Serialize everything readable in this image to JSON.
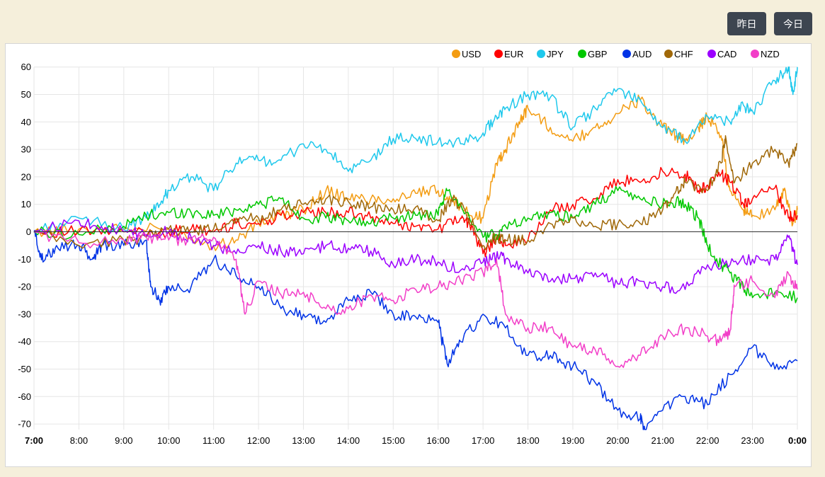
{
  "controls": {
    "yesterday_label": "昨日",
    "today_label": "今日"
  },
  "chart_data": {
    "type": "line",
    "x_ticks": [
      "7:00",
      "8:00",
      "9:00",
      "10:00",
      "11:00",
      "12:00",
      "13:00",
      "14:00",
      "15:00",
      "16:00",
      "17:00",
      "18:00",
      "19:00",
      "20:00",
      "21:00",
      "22:00",
      "23:00",
      "0:00"
    ],
    "bold_x_ticks": [
      "7:00",
      "0:00"
    ],
    "y_ticks": [
      60,
      50,
      40,
      30,
      20,
      10,
      0,
      -10,
      -20,
      -30,
      -40,
      -50,
      -60,
      -70
    ],
    "ylim": [
      -72,
      61
    ],
    "xlim": [
      7,
      24
    ],
    "grid": true,
    "zero_line": true,
    "legend_position": "top-right",
    "series": [
      {
        "name": "USD",
        "color": "#f39c12",
        "points": [
          [
            7,
            0
          ],
          [
            8,
            1
          ],
          [
            9,
            1
          ],
          [
            10,
            1
          ],
          [
            11,
            -5
          ],
          [
            11.5,
            -3
          ],
          [
            12,
            3
          ],
          [
            12.5,
            6
          ],
          [
            13,
            8
          ],
          [
            13.5,
            15
          ],
          [
            14,
            12
          ],
          [
            14.5,
            12
          ],
          [
            15,
            12
          ],
          [
            15.5,
            14
          ],
          [
            16,
            15
          ],
          [
            16.3,
            12
          ],
          [
            16.7,
            6
          ],
          [
            17,
            5
          ],
          [
            17.3,
            25
          ],
          [
            17.5,
            30
          ],
          [
            17.8,
            40
          ],
          [
            18,
            45
          ],
          [
            18.5,
            38
          ],
          [
            19,
            33
          ],
          [
            19.5,
            38
          ],
          [
            20,
            43
          ],
          [
            20.5,
            48
          ],
          [
            21,
            38
          ],
          [
            21.3,
            35
          ],
          [
            21.5,
            33
          ],
          [
            21.8,
            38
          ],
          [
            22,
            42
          ],
          [
            22.3,
            35
          ],
          [
            22.5,
            15
          ],
          [
            22.8,
            8
          ],
          [
            23,
            6
          ],
          [
            23.5,
            8
          ],
          [
            23.7,
            15
          ],
          [
            23.9,
            3
          ],
          [
            24,
            8
          ]
        ]
      },
      {
        "name": "EUR",
        "color": "#ff0000",
        "points": [
          [
            7,
            0
          ],
          [
            8,
            0
          ],
          [
            9,
            0
          ],
          [
            10,
            0
          ],
          [
            10.5,
            1
          ],
          [
            11,
            0
          ],
          [
            11.5,
            3
          ],
          [
            12,
            3
          ],
          [
            12.5,
            6
          ],
          [
            13,
            7
          ],
          [
            13.5,
            7
          ],
          [
            14,
            7
          ],
          [
            14.5,
            5
          ],
          [
            15,
            3
          ],
          [
            15.5,
            2
          ],
          [
            16,
            1
          ],
          [
            16.5,
            5
          ],
          [
            16.7,
            3
          ],
          [
            17,
            -8
          ],
          [
            17.3,
            -2
          ],
          [
            17.5,
            -5
          ],
          [
            18,
            -3
          ],
          [
            18.5,
            8
          ],
          [
            19,
            10
          ],
          [
            19.5,
            12
          ],
          [
            20,
            19
          ],
          [
            20.5,
            18
          ],
          [
            21,
            22
          ],
          [
            21.5,
            21
          ],
          [
            21.8,
            15
          ],
          [
            22,
            17
          ],
          [
            22.3,
            21
          ],
          [
            22.5,
            18
          ],
          [
            22.8,
            10
          ],
          [
            23,
            12
          ],
          [
            23.5,
            16
          ],
          [
            23.8,
            5
          ],
          [
            24,
            6
          ]
        ]
      },
      {
        "name": "JPY",
        "color": "#1ec8ec",
        "points": [
          [
            7,
            0
          ],
          [
            8,
            5
          ],
          [
            9,
            1
          ],
          [
            9.5,
            5
          ],
          [
            9.8,
            10
          ],
          [
            10,
            15
          ],
          [
            10.5,
            20
          ],
          [
            11,
            15
          ],
          [
            11.5,
            25
          ],
          [
            12,
            26
          ],
          [
            12.5,
            26
          ],
          [
            13,
            32
          ],
          [
            13.5,
            30
          ],
          [
            14,
            22
          ],
          [
            14.5,
            26
          ],
          [
            15,
            34
          ],
          [
            15.5,
            34
          ],
          [
            16,
            33
          ],
          [
            16.5,
            32
          ],
          [
            17,
            36
          ],
          [
            17.3,
            42
          ],
          [
            17.5,
            45
          ],
          [
            18,
            50
          ],
          [
            18.5,
            49
          ],
          [
            19,
            38
          ],
          [
            19.5,
            45
          ],
          [
            20,
            52
          ],
          [
            20.5,
            48
          ],
          [
            21,
            38
          ],
          [
            21.5,
            33
          ],
          [
            22,
            42
          ],
          [
            22.5,
            40
          ],
          [
            22.8,
            46
          ],
          [
            23,
            44
          ],
          [
            23.5,
            55
          ],
          [
            23.8,
            60
          ],
          [
            23.9,
            50
          ],
          [
            24,
            60
          ]
        ]
      },
      {
        "name": "GBP",
        "color": "#00c800",
        "points": [
          [
            7,
            0
          ],
          [
            8,
            -1
          ],
          [
            9,
            2
          ],
          [
            9.5,
            6
          ],
          [
            10,
            7
          ],
          [
            10.5,
            7
          ],
          [
            11,
            6
          ],
          [
            11.5,
            8
          ],
          [
            12,
            10
          ],
          [
            12.5,
            12
          ],
          [
            13,
            5
          ],
          [
            13.5,
            5
          ],
          [
            14,
            4
          ],
          [
            14.5,
            3
          ],
          [
            15,
            5
          ],
          [
            15.5,
            6
          ],
          [
            16,
            6
          ],
          [
            16.2,
            15
          ],
          [
            16.5,
            10
          ],
          [
            17,
            -2
          ],
          [
            17.3,
            -1
          ],
          [
            17.5,
            2
          ],
          [
            18,
            5
          ],
          [
            18.5,
            7
          ],
          [
            19,
            5
          ],
          [
            19.5,
            10
          ],
          [
            20,
            15
          ],
          [
            20.5,
            12
          ],
          [
            21,
            10
          ],
          [
            21.3,
            11
          ],
          [
            21.5,
            10
          ],
          [
            21.8,
            5
          ],
          [
            22,
            -5
          ],
          [
            22.3,
            -12
          ],
          [
            22.5,
            -15
          ],
          [
            22.8,
            -20
          ],
          [
            23,
            -24
          ],
          [
            23.5,
            -22
          ],
          [
            24,
            -24
          ]
        ]
      },
      {
        "name": "AUD",
        "color": "#0033e6",
        "points": [
          [
            7,
            0
          ],
          [
            7.2,
            -11
          ],
          [
            7.5,
            -5
          ],
          [
            8,
            -5
          ],
          [
            8.3,
            -10
          ],
          [
            8.5,
            -5
          ],
          [
            9,
            -5
          ],
          [
            9.5,
            -3
          ],
          [
            9.6,
            -20
          ],
          [
            9.8,
            -25
          ],
          [
            10,
            -20
          ],
          [
            10.5,
            -20
          ],
          [
            11,
            -10
          ],
          [
            11.5,
            -16
          ],
          [
            12,
            -20
          ],
          [
            12.5,
            -28
          ],
          [
            13,
            -30
          ],
          [
            13.5,
            -33
          ],
          [
            14,
            -25
          ],
          [
            14.5,
            -22
          ],
          [
            15,
            -30
          ],
          [
            15.5,
            -31
          ],
          [
            16,
            -33
          ],
          [
            16.2,
            -48
          ],
          [
            16.5,
            -40
          ],
          [
            17,
            -30
          ],
          [
            17.5,
            -35
          ],
          [
            18,
            -45
          ],
          [
            18.5,
            -45
          ],
          [
            19,
            -49
          ],
          [
            19.5,
            -55
          ],
          [
            20,
            -65
          ],
          [
            20.5,
            -68
          ],
          [
            20.6,
            -72
          ],
          [
            21,
            -65
          ],
          [
            21.5,
            -60
          ],
          [
            22,
            -63
          ],
          [
            22.5,
            -52
          ],
          [
            23,
            -42
          ],
          [
            23.5,
            -50
          ],
          [
            24,
            -47
          ]
        ]
      },
      {
        "name": "CHF",
        "color": "#a06808",
        "points": [
          [
            7,
            0
          ],
          [
            8,
            -5
          ],
          [
            9,
            -3
          ],
          [
            9.5,
            -2
          ],
          [
            10,
            1
          ],
          [
            10.5,
            0
          ],
          [
            11,
            1
          ],
          [
            11.5,
            5
          ],
          [
            12,
            5
          ],
          [
            12.5,
            8
          ],
          [
            13,
            10
          ],
          [
            13.5,
            12
          ],
          [
            14,
            11
          ],
          [
            14.5,
            9
          ],
          [
            15,
            8
          ],
          [
            15.5,
            9
          ],
          [
            16,
            4
          ],
          [
            16.3,
            12
          ],
          [
            16.6,
            8
          ],
          [
            17,
            -5
          ],
          [
            17.3,
            -2
          ],
          [
            17.5,
            -3
          ],
          [
            18,
            -3
          ],
          [
            18.5,
            3
          ],
          [
            19,
            5
          ],
          [
            19.5,
            2
          ],
          [
            20,
            3
          ],
          [
            20.5,
            3
          ],
          [
            21,
            8
          ],
          [
            21.3,
            15
          ],
          [
            21.5,
            18
          ],
          [
            22,
            15
          ],
          [
            22.3,
            25
          ],
          [
            22.4,
            35
          ],
          [
            22.6,
            18
          ],
          [
            23,
            25
          ],
          [
            23.5,
            30
          ],
          [
            23.8,
            25
          ],
          [
            24,
            32
          ]
        ]
      },
      {
        "name": "CAD",
        "color": "#9b00ff",
        "points": [
          [
            7,
            0
          ],
          [
            8,
            4
          ],
          [
            8.5,
            2
          ],
          [
            9,
            0
          ],
          [
            9.5,
            -1
          ],
          [
            10,
            0
          ],
          [
            10.5,
            -2
          ],
          [
            11,
            -5
          ],
          [
            11.5,
            -8
          ],
          [
            12,
            -5
          ],
          [
            12.5,
            -7
          ],
          [
            13,
            -8
          ],
          [
            13.5,
            -5
          ],
          [
            14,
            -6
          ],
          [
            14.5,
            -7
          ],
          [
            15,
            -12
          ],
          [
            15.5,
            -10
          ],
          [
            16,
            -11
          ],
          [
            16.5,
            -14
          ],
          [
            17,
            -11
          ],
          [
            17.3,
            -9
          ],
          [
            17.5,
            -10
          ],
          [
            18,
            -15
          ],
          [
            18.5,
            -18
          ],
          [
            19,
            -17
          ],
          [
            19.5,
            -15
          ],
          [
            20,
            -19
          ],
          [
            20.5,
            -18
          ],
          [
            21,
            -20
          ],
          [
            21.5,
            -21
          ],
          [
            22,
            -12
          ],
          [
            22.5,
            -12
          ],
          [
            23,
            -10
          ],
          [
            23.5,
            -10
          ],
          [
            23.8,
            -2
          ],
          [
            24,
            -12
          ]
        ]
      },
      {
        "name": "NZD",
        "color": "#f23ec8",
        "points": [
          [
            7,
            0
          ],
          [
            8,
            -4
          ],
          [
            9,
            -3
          ],
          [
            9.5,
            -2
          ],
          [
            10,
            -3
          ],
          [
            10.5,
            -3
          ],
          [
            11,
            -2
          ],
          [
            11.5,
            -10
          ],
          [
            11.7,
            -30
          ],
          [
            12,
            -18
          ],
          [
            12.5,
            -23
          ],
          [
            13,
            -22
          ],
          [
            13.5,
            -28
          ],
          [
            14,
            -28
          ],
          [
            14.5,
            -23
          ],
          [
            15,
            -25
          ],
          [
            15.5,
            -21
          ],
          [
            16,
            -20
          ],
          [
            16.5,
            -18
          ],
          [
            17,
            -15
          ],
          [
            17.3,
            -10
          ],
          [
            17.5,
            -30
          ],
          [
            18,
            -35
          ],
          [
            18.5,
            -35
          ],
          [
            19,
            -42
          ],
          [
            19.5,
            -43
          ],
          [
            20,
            -49
          ],
          [
            20.5,
            -45
          ],
          [
            21,
            -38
          ],
          [
            21.5,
            -35
          ],
          [
            22,
            -38
          ],
          [
            22.3,
            -40
          ],
          [
            22.5,
            -36
          ],
          [
            22.6,
            -20
          ],
          [
            23,
            -18
          ],
          [
            23.5,
            -24
          ],
          [
            23.8,
            -15
          ],
          [
            24,
            -21
          ]
        ]
      }
    ]
  }
}
